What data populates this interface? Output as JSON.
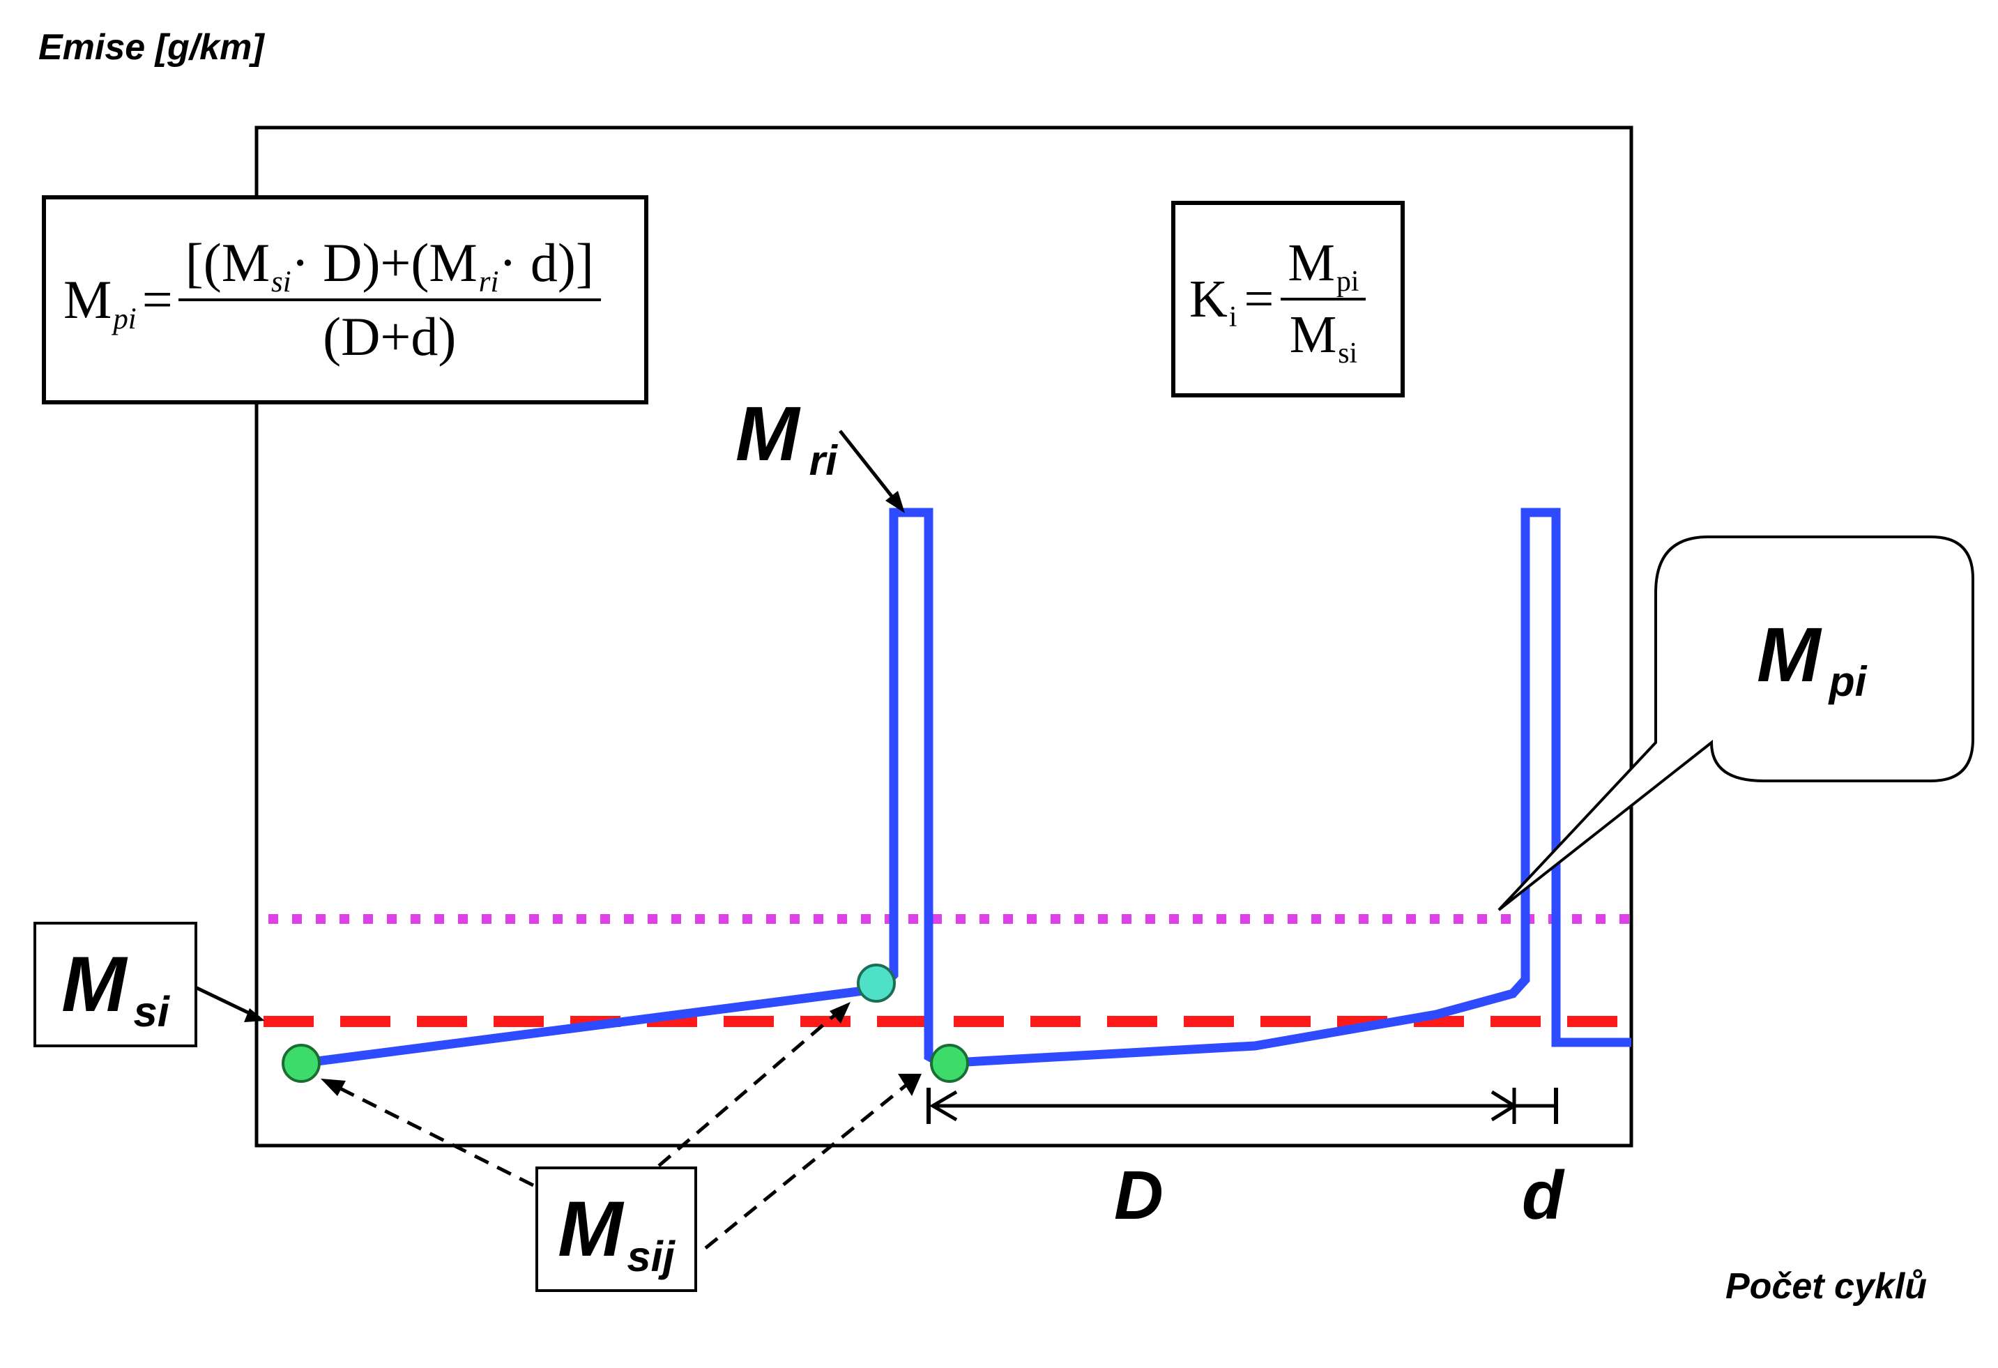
{
  "y_axis_label": "Emise [g/km]",
  "x_axis_label": "Počet cyklů",
  "formula_mpi": {
    "lhs_base": "M",
    "lhs_sub": "pi",
    "equals": "=",
    "numerator": "[(M si · D)+(M ri · d)]",
    "num_part1_base": "M",
    "num_part1_sub": "si",
    "num_part1_rest": "· D)+(",
    "num_part2_base": "M",
    "num_part2_sub": "ri",
    "num_part2_rest": "· d)]",
    "num_open": "[(",
    "denominator": "(D+d)"
  },
  "formula_ki": {
    "lhs_base": "K",
    "lhs_sub": "i",
    "equals": "=",
    "num_base": "M",
    "num_sub": "pi",
    "den_base": "M",
    "den_sub": "si"
  },
  "labels": {
    "mri_base": "M",
    "mri_sub": "ri",
    "mpi_base": "M",
    "mpi_sub": "pi",
    "msi_base": "M",
    "msi_sub": "si",
    "msij_base": "M",
    "msij_sub": "sij",
    "D": "D",
    "d": "d"
  },
  "colors": {
    "curve": "#2e4bff",
    "mpi_line": "#e040e8",
    "msi_line": "#ff1a1a",
    "green_point": "#3ddc6a",
    "cyan_point": "#4fe0c8",
    "frame": "#000000"
  }
}
